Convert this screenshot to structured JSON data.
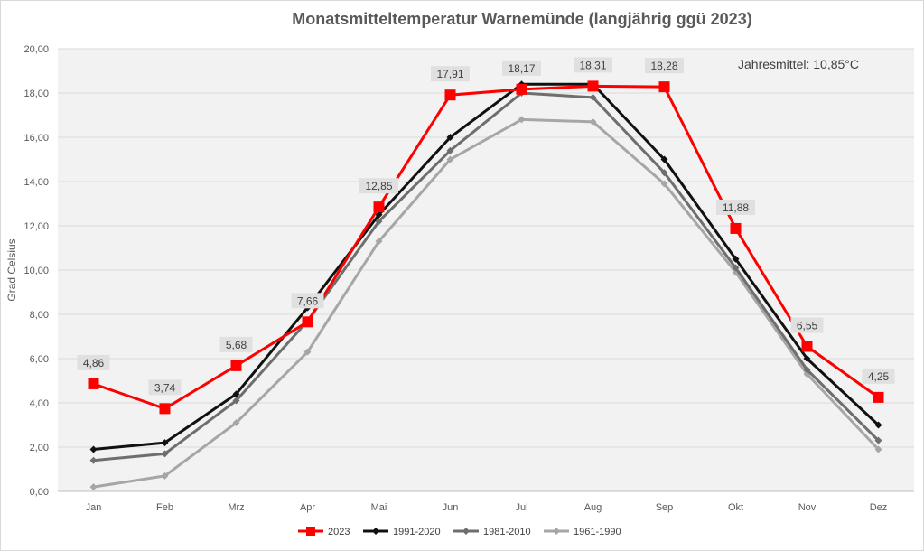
{
  "chart_data": {
    "type": "line",
    "title": "Monatsmitteltemperatur Warnemünde (langjährig ggü 2023)",
    "xlabel": "",
    "ylabel": "Grad Celsius",
    "categories": [
      "Jan",
      "Feb",
      "Mrz",
      "Apr",
      "Mai",
      "Jun",
      "Jul",
      "Aug",
      "Sep",
      "Okt",
      "Nov",
      "Dez"
    ],
    "ylim": [
      0,
      20
    ],
    "yticks": [
      "0,00",
      "2,00",
      "4,00",
      "6,00",
      "8,00",
      "10,00",
      "12,00",
      "14,00",
      "16,00",
      "18,00",
      "20,00"
    ],
    "grid": true,
    "legend_position": "bottom",
    "annotation": "Jahresmittel: 10,85°C",
    "series": [
      {
        "name": "1961-1990",
        "color": "#a6a6a6",
        "marker": "diamond",
        "values": [
          0.2,
          0.7,
          3.1,
          6.3,
          11.3,
          15.0,
          16.8,
          16.7,
          13.9,
          9.9,
          5.3,
          1.9
        ]
      },
      {
        "name": "1981-2010",
        "color": "#6e6e6e",
        "marker": "diamond",
        "values": [
          1.4,
          1.7,
          4.1,
          7.7,
          12.2,
          15.4,
          18.0,
          17.8,
          14.4,
          10.1,
          5.5,
          2.3
        ]
      },
      {
        "name": "1991-2020",
        "color": "#111111",
        "marker": "diamond",
        "values": [
          1.9,
          2.2,
          4.4,
          8.3,
          12.5,
          16.0,
          18.4,
          18.4,
          15.0,
          10.5,
          6.0,
          3.0
        ]
      },
      {
        "name": "2023",
        "color": "#ff0000",
        "marker": "square",
        "values": [
          4.86,
          3.74,
          5.68,
          7.66,
          12.85,
          17.91,
          18.17,
          18.31,
          18.28,
          11.88,
          6.55,
          4.25
        ],
        "data_labels": [
          "4,86",
          "3,74",
          "5,68",
          "7,66",
          "12,85",
          "17,91",
          "18,17",
          "18,31",
          "18,28",
          "11,88",
          "6,55",
          "4,25"
        ]
      }
    ],
    "legend_order": [
      "2023",
      "1991-2020",
      "1981-2010",
      "1961-1990"
    ]
  }
}
